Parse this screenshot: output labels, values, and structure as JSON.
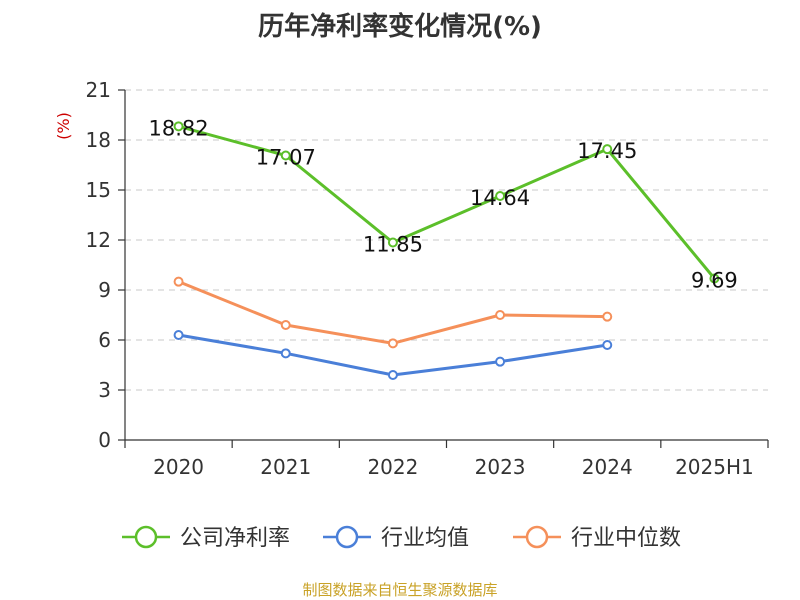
{
  "chart_data": {
    "type": "line",
    "title": "历年净利率变化情况(%)",
    "ylabel": "(%)",
    "xlabel": "",
    "categories": [
      "2020",
      "2021",
      "2022",
      "2023",
      "2024",
      "2025H1"
    ],
    "ylim": [
      0,
      21
    ],
    "yticks": [
      0,
      3,
      6,
      9,
      12,
      15,
      18,
      21
    ],
    "grid": true,
    "legend": "bottom",
    "series": [
      {
        "name": "公司净利率",
        "color": "#5cbf2a",
        "values": [
          18.82,
          17.07,
          11.85,
          14.64,
          17.45,
          9.69
        ],
        "labels": [
          "18.82",
          "17.07",
          "11.85",
          "14.64",
          "17.45",
          "9.69"
        ]
      },
      {
        "name": "行业均值",
        "color": "#4a7fd8",
        "values": [
          6.3,
          5.2,
          3.9,
          4.7,
          5.7,
          null
        ]
      },
      {
        "name": "行业中位数",
        "color": "#f5905a",
        "values": [
          9.5,
          6.9,
          5.8,
          7.5,
          7.4,
          null
        ]
      }
    ]
  },
  "source": "制图数据来自恒生聚源数据库"
}
